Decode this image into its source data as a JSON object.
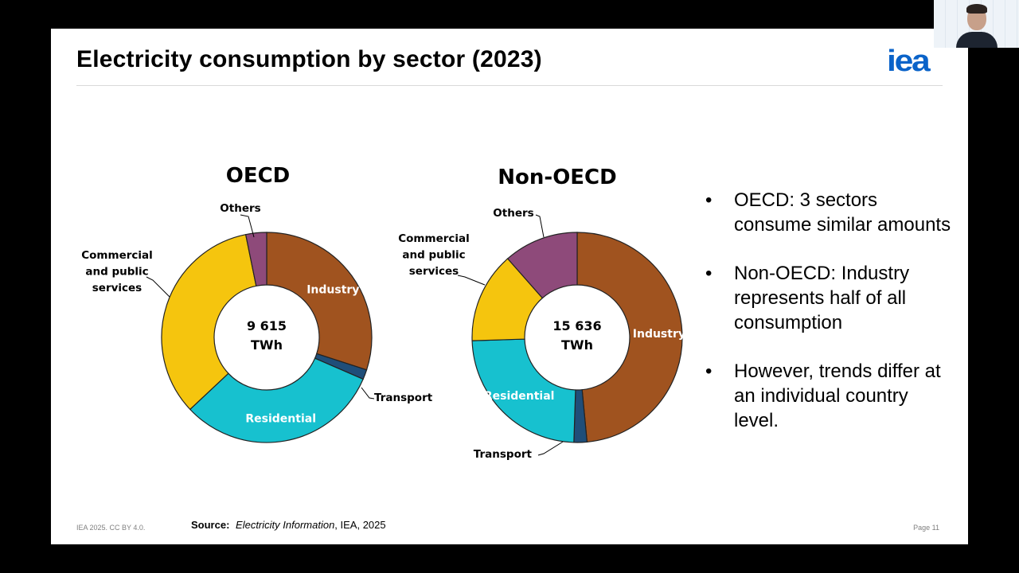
{
  "slide": {
    "title": "Electricity consumption by sector (2023)",
    "logo_text": "iea",
    "footer_left": "IEA 2025. CC BY 4.0.",
    "source_label": "Source:",
    "source_publication": "Electricity Information",
    "source_rest": ", IEA, 2025",
    "page": "Page 11"
  },
  "bullets": [
    "OECD: 3 sectors consume similar amounts",
    "Non-OECD: Industry represents half of all consumption",
    "However, trends differ at an individual country level."
  ],
  "bullet_glyph": "•",
  "colors": {
    "Industry": "#a0531f",
    "Transport": "#1f4e79",
    "Residential": "#17c1cf",
    "Commercial": "#f5c50e",
    "Others": "#8e4a7a",
    "logo": "#0a63c9"
  },
  "chart_data": [
    {
      "type": "pie",
      "title": "OECD",
      "center_value": "9 615",
      "center_unit": "TWh",
      "start_angle_deg": 0,
      "slices": [
        {
          "key": "Industry",
          "label": "Industry",
          "value": 30.0,
          "label_inside": true
        },
        {
          "key": "Transport",
          "label": "Transport",
          "value": 1.5,
          "label_inside": false
        },
        {
          "key": "Residential",
          "label": "Residential",
          "value": 31.5,
          "label_inside": true
        },
        {
          "key": "Commercial",
          "label": "Commercial and public services",
          "value": 33.8,
          "label_inside": false
        },
        {
          "key": "Others",
          "label": "Others",
          "value": 3.2,
          "label_inside": false
        }
      ]
    },
    {
      "type": "pie",
      "title": "Non-OECD",
      "center_value": "15 636",
      "center_unit": "TWh",
      "start_angle_deg": 0,
      "slices": [
        {
          "key": "Industry",
          "label": "Industry",
          "value": 48.5,
          "label_inside": true
        },
        {
          "key": "Transport",
          "label": "Transport",
          "value": 2.0,
          "label_inside": false
        },
        {
          "key": "Residential",
          "label": "Residential",
          "value": 24.0,
          "label_inside": true
        },
        {
          "key": "Commercial",
          "label": "Commercial and public services",
          "value": 14.0,
          "label_inside": false
        },
        {
          "key": "Others",
          "label": "Others",
          "value": 11.5,
          "label_inside": false
        }
      ]
    }
  ]
}
